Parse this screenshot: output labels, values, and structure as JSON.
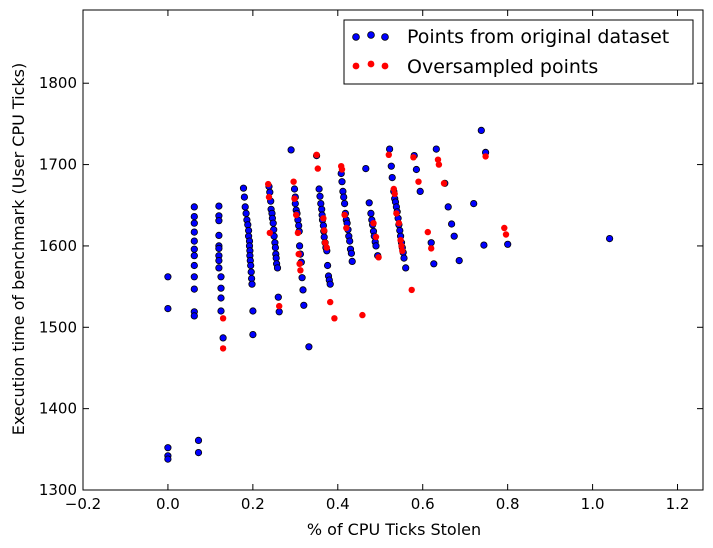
{
  "chart_data": {
    "type": "scatter",
    "title": "",
    "xlabel": "% of CPU Ticks Stolen",
    "ylabel": "Execution time of benchmark (User CPU Ticks)",
    "xlim": [
      -0.2,
      1.26
    ],
    "ylim": [
      1300,
      1890
    ],
    "x_ticks": [
      -0.2,
      0.0,
      0.2,
      0.4,
      0.6,
      0.8,
      1.0,
      1.2
    ],
    "x_tick_labels": [
      "−0.2",
      "0.0",
      "0.2",
      "0.4",
      "0.6",
      "0.8",
      "1.0",
      "1.2"
    ],
    "y_ticks": [
      1300,
      1400,
      1500,
      1600,
      1700,
      1800
    ],
    "y_tick_labels": [
      "1300",
      "1400",
      "1500",
      "1600",
      "1700",
      "1800"
    ],
    "grid": false,
    "legend_position": "top-right",
    "series": [
      {
        "name": "Points from original dataset",
        "color": "#0000ff",
        "points": [
          [
            0.0,
            1562
          ],
          [
            0.0,
            1523
          ],
          [
            0.0,
            1352
          ],
          [
            0.0,
            1342
          ],
          [
            0.0,
            1338
          ],
          [
            0.062,
            1648
          ],
          [
            0.062,
            1636
          ],
          [
            0.062,
            1628
          ],
          [
            0.062,
            1617
          ],
          [
            0.062,
            1606
          ],
          [
            0.062,
            1596
          ],
          [
            0.062,
            1588
          ],
          [
            0.062,
            1576
          ],
          [
            0.062,
            1562
          ],
          [
            0.062,
            1547
          ],
          [
            0.062,
            1519
          ],
          [
            0.062,
            1514
          ],
          [
            0.072,
            1361
          ],
          [
            0.072,
            1346
          ],
          [
            0.12,
            1649
          ],
          [
            0.12,
            1637
          ],
          [
            0.12,
            1631
          ],
          [
            0.12,
            1613
          ],
          [
            0.12,
            1600
          ],
          [
            0.12,
            1597
          ],
          [
            0.12,
            1588
          ],
          [
            0.12,
            1582
          ],
          [
            0.12,
            1573
          ],
          [
            0.125,
            1562
          ],
          [
            0.125,
            1548
          ],
          [
            0.125,
            1536
          ],
          [
            0.125,
            1520
          ],
          [
            0.13,
            1487
          ],
          [
            0.178,
            1671
          ],
          [
            0.18,
            1660
          ],
          [
            0.182,
            1648
          ],
          [
            0.184,
            1640
          ],
          [
            0.186,
            1632
          ],
          [
            0.188,
            1626
          ],
          [
            0.19,
            1619
          ],
          [
            0.19,
            1612
          ],
          [
            0.192,
            1606
          ],
          [
            0.192,
            1600
          ],
          [
            0.193,
            1594
          ],
          [
            0.193,
            1588
          ],
          [
            0.194,
            1582
          ],
          [
            0.195,
            1576
          ],
          [
            0.196,
            1568
          ],
          [
            0.197,
            1560
          ],
          [
            0.198,
            1553
          ],
          [
            0.2,
            1520
          ],
          [
            0.2,
            1491
          ],
          [
            0.238,
            1673
          ],
          [
            0.24,
            1666
          ],
          [
            0.242,
            1655
          ],
          [
            0.243,
            1645
          ],
          [
            0.245,
            1640
          ],
          [
            0.246,
            1634
          ],
          [
            0.248,
            1628
          ],
          [
            0.249,
            1620
          ],
          [
            0.25,
            1612
          ],
          [
            0.252,
            1604
          ],
          [
            0.253,
            1598
          ],
          [
            0.254,
            1590
          ],
          [
            0.255,
            1585
          ],
          [
            0.256,
            1578
          ],
          [
            0.258,
            1573
          ],
          [
            0.26,
            1537
          ],
          [
            0.262,
            1519
          ],
          [
            0.29,
            1718
          ],
          [
            0.298,
            1670
          ],
          [
            0.3,
            1660
          ],
          [
            0.3,
            1652
          ],
          [
            0.302,
            1644
          ],
          [
            0.304,
            1640
          ],
          [
            0.306,
            1632
          ],
          [
            0.308,
            1625
          ],
          [
            0.309,
            1618
          ],
          [
            0.31,
            1600
          ],
          [
            0.312,
            1590
          ],
          [
            0.314,
            1580
          ],
          [
            0.316,
            1561
          ],
          [
            0.318,
            1546
          ],
          [
            0.32,
            1527
          ],
          [
            0.332,
            1476
          ],
          [
            0.35,
            1711
          ],
          [
            0.356,
            1670
          ],
          [
            0.358,
            1661
          ],
          [
            0.36,
            1652
          ],
          [
            0.362,
            1645
          ],
          [
            0.363,
            1638
          ],
          [
            0.364,
            1632
          ],
          [
            0.366,
            1625
          ],
          [
            0.367,
            1618
          ],
          [
            0.368,
            1611
          ],
          [
            0.37,
            1604
          ],
          [
            0.372,
            1598
          ],
          [
            0.374,
            1594
          ],
          [
            0.376,
            1576
          ],
          [
            0.378,
            1563
          ],
          [
            0.38,
            1558
          ],
          [
            0.382,
            1553
          ],
          [
            0.408,
            1689
          ],
          [
            0.41,
            1679
          ],
          [
            0.412,
            1667
          ],
          [
            0.414,
            1660
          ],
          [
            0.416,
            1652
          ],
          [
            0.418,
            1640
          ],
          [
            0.42,
            1632
          ],
          [
            0.422,
            1628
          ],
          [
            0.424,
            1620
          ],
          [
            0.426,
            1612
          ],
          [
            0.428,
            1606
          ],
          [
            0.43,
            1596
          ],
          [
            0.432,
            1591
          ],
          [
            0.434,
            1581
          ],
          [
            0.466,
            1695
          ],
          [
            0.474,
            1653
          ],
          [
            0.478,
            1640
          ],
          [
            0.48,
            1632
          ],
          [
            0.482,
            1626
          ],
          [
            0.484,
            1618
          ],
          [
            0.486,
            1612
          ],
          [
            0.488,
            1605
          ],
          [
            0.49,
            1600
          ],
          [
            0.494,
            1588
          ],
          [
            0.522,
            1719
          ],
          [
            0.526,
            1698
          ],
          [
            0.528,
            1684
          ],
          [
            0.532,
            1667
          ],
          [
            0.534,
            1658
          ],
          [
            0.536,
            1654
          ],
          [
            0.538,
            1648
          ],
          [
            0.54,
            1642
          ],
          [
            0.542,
            1634
          ],
          [
            0.544,
            1626
          ],
          [
            0.546,
            1619
          ],
          [
            0.548,
            1612
          ],
          [
            0.55,
            1604
          ],
          [
            0.552,
            1598
          ],
          [
            0.554,
            1592
          ],
          [
            0.556,
            1585
          ],
          [
            0.56,
            1573
          ],
          [
            0.58,
            1711
          ],
          [
            0.585,
            1694
          ],
          [
            0.594,
            1667
          ],
          [
            0.62,
            1604
          ],
          [
            0.626,
            1578
          ],
          [
            0.632,
            1719
          ],
          [
            0.652,
            1677
          ],
          [
            0.66,
            1648
          ],
          [
            0.668,
            1627
          ],
          [
            0.674,
            1612
          ],
          [
            0.686,
            1582
          ],
          [
            0.72,
            1652
          ],
          [
            0.738,
            1742
          ],
          [
            0.744,
            1601
          ],
          [
            0.748,
            1715
          ],
          [
            0.8,
            1602
          ],
          [
            1.04,
            1609
          ]
        ]
      },
      {
        "name": "Oversampled points",
        "color": "#ff0000",
        "points": [
          [
            0.13,
            1511
          ],
          [
            0.13,
            1474
          ],
          [
            0.236,
            1676
          ],
          [
            0.238,
            1660
          ],
          [
            0.24,
            1616
          ],
          [
            0.262,
            1526
          ],
          [
            0.296,
            1679
          ],
          [
            0.298,
            1658
          ],
          [
            0.302,
            1638
          ],
          [
            0.306,
            1616
          ],
          [
            0.308,
            1590
          ],
          [
            0.31,
            1578
          ],
          [
            0.312,
            1570
          ],
          [
            0.35,
            1712
          ],
          [
            0.353,
            1695
          ],
          [
            0.366,
            1634
          ],
          [
            0.368,
            1619
          ],
          [
            0.37,
            1604
          ],
          [
            0.374,
            1598
          ],
          [
            0.382,
            1531
          ],
          [
            0.392,
            1511
          ],
          [
            0.408,
            1698
          ],
          [
            0.41,
            1694
          ],
          [
            0.416,
            1638
          ],
          [
            0.42,
            1622
          ],
          [
            0.458,
            1515
          ],
          [
            0.484,
            1628
          ],
          [
            0.49,
            1611
          ],
          [
            0.496,
            1586
          ],
          [
            0.52,
            1712
          ],
          [
            0.532,
            1670
          ],
          [
            0.534,
            1664
          ],
          [
            0.538,
            1640
          ],
          [
            0.544,
            1628
          ],
          [
            0.548,
            1607
          ],
          [
            0.55,
            1600
          ],
          [
            0.552,
            1594
          ],
          [
            0.574,
            1546
          ],
          [
            0.578,
            1709
          ],
          [
            0.59,
            1679
          ],
          [
            0.612,
            1617
          ],
          [
            0.62,
            1597
          ],
          [
            0.636,
            1706
          ],
          [
            0.638,
            1700
          ],
          [
            0.65,
            1677
          ],
          [
            0.748,
            1710
          ],
          [
            0.792,
            1622
          ],
          [
            0.796,
            1614
          ]
        ]
      }
    ]
  }
}
